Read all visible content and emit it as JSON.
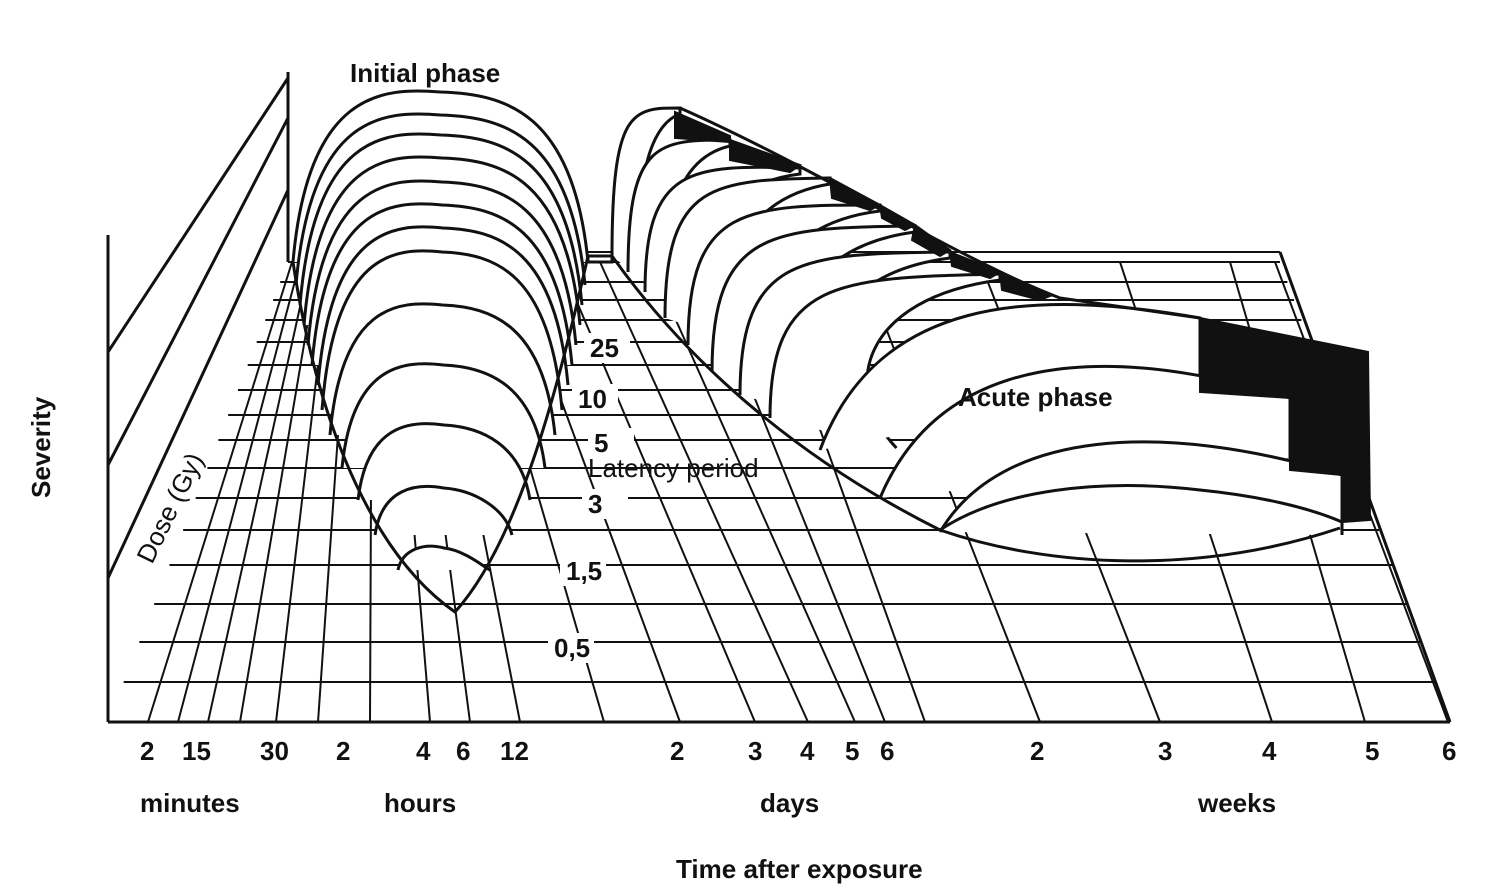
{
  "labels": {
    "initial_phase": "Initial phase",
    "acute_phase": "Acute phase",
    "latency_period": "Latency period",
    "severity": "Severity",
    "dose_axis": "Dose (Gy)",
    "time_axis": "Time after exposure"
  },
  "dose_levels": [
    "25",
    "10",
    "5",
    "3",
    "1,5",
    "0,5"
  ],
  "time_ticks": {
    "minutes": [
      "2",
      "15",
      "30"
    ],
    "hours": [
      "2",
      "4",
      "6",
      "12"
    ],
    "days": [
      "2",
      "3",
      "4",
      "5",
      "6"
    ],
    "weeks": [
      "2",
      "3",
      "4",
      "5",
      "6"
    ]
  },
  "time_units": {
    "minutes": "minutes",
    "hours": "hours",
    "days": "days",
    "weeks": "weeks"
  },
  "colors": {
    "ink": "#111111",
    "paper": "#ffffff"
  }
}
